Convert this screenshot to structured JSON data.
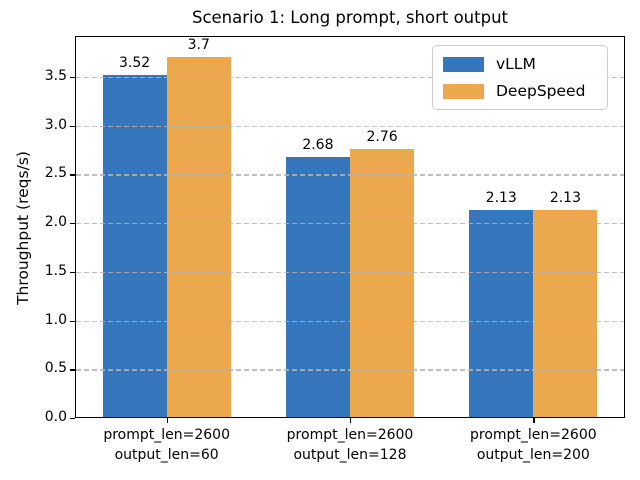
{
  "title": "Scenario 1: Long prompt, short output",
  "chart_data": {
    "type": "bar",
    "title": "Scenario 1: Long prompt, short output",
    "xlabel": "",
    "ylabel": "Throughput (reqs/s)",
    "categories": [
      "prompt_len=2600\noutput_len=60",
      "prompt_len=2600\noutput_len=128",
      "prompt_len=2600\noutput_len=200"
    ],
    "series": [
      {
        "name": "vLLM",
        "color": "#3676bd",
        "values": [
          3.52,
          2.68,
          2.13
        ],
        "bar_labels": [
          "3.52",
          "2.68",
          "2.13"
        ]
      },
      {
        "name": "DeepSpeed",
        "color": "#eca84c",
        "values": [
          3.7,
          2.76,
          2.13
        ],
        "bar_labels": [
          "3.7",
          "2.76",
          "2.13"
        ]
      }
    ],
    "yticks": [
      0.0,
      0.5,
      1.0,
      1.5,
      2.0,
      2.5,
      3.0,
      3.5
    ],
    "ylim": [
      0,
      3.92
    ],
    "bar_width_fraction": 0.35,
    "grid": "dashed-horizontal-over-bars",
    "legend_position": "upper-right"
  }
}
